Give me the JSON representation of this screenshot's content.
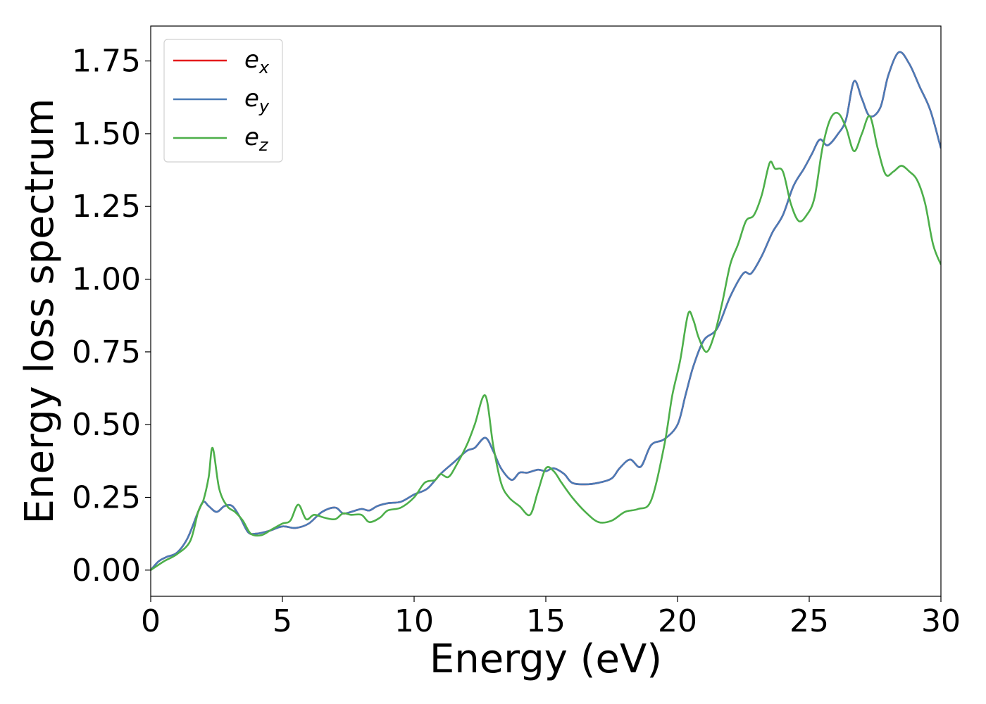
{
  "chart_data": {
    "type": "line",
    "title": "",
    "xlabel": "Energy (eV)",
    "ylabel": "Energy loss spectrum",
    "xlim": [
      0,
      30
    ],
    "ylim": [
      -0.09,
      1.87
    ],
    "xticks": [
      0,
      5,
      10,
      15,
      20,
      25,
      30
    ],
    "xtick_labels": [
      "0",
      "5",
      "10",
      "15",
      "20",
      "25",
      "30"
    ],
    "yticks": [
      0,
      0.25,
      0.5,
      0.75,
      1.0,
      1.25,
      1.5,
      1.75
    ],
    "ytick_labels": [
      "0.00",
      "0.25",
      "0.50",
      "0.75",
      "1.00",
      "1.25",
      "1.50",
      "1.75"
    ],
    "grid": false,
    "legend_position": "top-left",
    "series": [
      {
        "name": "e_x",
        "legend_base": "e",
        "legend_sub": "x",
        "color": "#e41a1c",
        "x": [
          0,
          0.3,
          0.6,
          1.0,
          1.4,
          1.8,
          2.0,
          2.2,
          2.5,
          2.8,
          3.1,
          3.4,
          3.7,
          4.0,
          4.5,
          5.0,
          5.5,
          6.0,
          6.5,
          7.0,
          7.3,
          7.6,
          8.0,
          8.3,
          8.6,
          9.0,
          9.5,
          10.0,
          10.5,
          11.0,
          11.5,
          12.0,
          12.3,
          12.7,
          13.0,
          13.3,
          13.7,
          14.0,
          14.3,
          14.7,
          15.0,
          15.3,
          15.7,
          16.0,
          16.5,
          17.0,
          17.5,
          17.8,
          18.2,
          18.6,
          19.0,
          19.5,
          20.0,
          20.3,
          20.6,
          21.0,
          21.5,
          22.0,
          22.5,
          22.8,
          23.2,
          23.6,
          24.0,
          24.4,
          24.8,
          25.1,
          25.4,
          25.7,
          26.1,
          26.4,
          26.7,
          27.0,
          27.3,
          27.7,
          28.0,
          28.4,
          28.8,
          29.2,
          29.6,
          30.0
        ],
        "values": [
          0,
          0.03,
          0.045,
          0.06,
          0.11,
          0.2,
          0.235,
          0.22,
          0.2,
          0.22,
          0.22,
          0.18,
          0.13,
          0.125,
          0.135,
          0.15,
          0.145,
          0.16,
          0.2,
          0.215,
          0.195,
          0.2,
          0.21,
          0.205,
          0.22,
          0.23,
          0.235,
          0.26,
          0.28,
          0.33,
          0.37,
          0.41,
          0.42,
          0.455,
          0.41,
          0.35,
          0.31,
          0.335,
          0.335,
          0.345,
          0.34,
          0.35,
          0.33,
          0.3,
          0.295,
          0.3,
          0.315,
          0.35,
          0.38,
          0.355,
          0.43,
          0.45,
          0.5,
          0.6,
          0.7,
          0.79,
          0.83,
          0.94,
          1.02,
          1.02,
          1.08,
          1.16,
          1.22,
          1.32,
          1.38,
          1.43,
          1.48,
          1.46,
          1.5,
          1.55,
          1.68,
          1.62,
          1.56,
          1.59,
          1.7,
          1.78,
          1.74,
          1.66,
          1.58,
          1.45
        ]
      },
      {
        "name": "e_y",
        "legend_base": "e",
        "legend_sub": "y",
        "color": "#4a7bb7",
        "x": [
          0,
          0.3,
          0.6,
          1.0,
          1.4,
          1.8,
          2.0,
          2.2,
          2.5,
          2.8,
          3.1,
          3.4,
          3.7,
          4.0,
          4.5,
          5.0,
          5.5,
          6.0,
          6.5,
          7.0,
          7.3,
          7.6,
          8.0,
          8.3,
          8.6,
          9.0,
          9.5,
          10.0,
          10.5,
          11.0,
          11.5,
          12.0,
          12.3,
          12.7,
          13.0,
          13.3,
          13.7,
          14.0,
          14.3,
          14.7,
          15.0,
          15.3,
          15.7,
          16.0,
          16.5,
          17.0,
          17.5,
          17.8,
          18.2,
          18.6,
          19.0,
          19.5,
          20.0,
          20.3,
          20.6,
          21.0,
          21.5,
          22.0,
          22.5,
          22.8,
          23.2,
          23.6,
          24.0,
          24.4,
          24.8,
          25.1,
          25.4,
          25.7,
          26.1,
          26.4,
          26.7,
          27.0,
          27.3,
          27.7,
          28.0,
          28.4,
          28.8,
          29.2,
          29.6,
          30.0
        ],
        "values": [
          0,
          0.03,
          0.045,
          0.06,
          0.11,
          0.2,
          0.235,
          0.22,
          0.2,
          0.22,
          0.22,
          0.18,
          0.13,
          0.125,
          0.135,
          0.15,
          0.145,
          0.16,
          0.2,
          0.215,
          0.195,
          0.2,
          0.21,
          0.205,
          0.22,
          0.23,
          0.235,
          0.26,
          0.28,
          0.33,
          0.37,
          0.41,
          0.42,
          0.455,
          0.41,
          0.35,
          0.31,
          0.335,
          0.335,
          0.345,
          0.34,
          0.35,
          0.33,
          0.3,
          0.295,
          0.3,
          0.315,
          0.35,
          0.38,
          0.355,
          0.43,
          0.45,
          0.5,
          0.6,
          0.7,
          0.79,
          0.83,
          0.94,
          1.02,
          1.02,
          1.08,
          1.16,
          1.22,
          1.32,
          1.38,
          1.43,
          1.48,
          1.46,
          1.5,
          1.55,
          1.68,
          1.62,
          1.56,
          1.59,
          1.7,
          1.78,
          1.74,
          1.66,
          1.58,
          1.45
        ]
      },
      {
        "name": "e_z",
        "legend_base": "e",
        "legend_sub": "z",
        "color": "#4daf4a",
        "x": [
          0,
          0.5,
          1.0,
          1.5,
          1.8,
          2.0,
          2.2,
          2.35,
          2.6,
          2.9,
          3.2,
          3.5,
          3.8,
          4.2,
          4.6,
          5.0,
          5.3,
          5.6,
          5.9,
          6.2,
          6.6,
          7.0,
          7.3,
          7.6,
          8.0,
          8.3,
          8.7,
          9.0,
          9.5,
          10.0,
          10.4,
          10.8,
          11.0,
          11.3,
          11.6,
          12.0,
          12.3,
          12.7,
          13.0,
          13.3,
          13.6,
          14.0,
          14.4,
          14.7,
          15.0,
          15.3,
          15.6,
          16.0,
          16.5,
          17.0,
          17.5,
          18.0,
          18.5,
          19.0,
          19.5,
          19.8,
          20.1,
          20.4,
          20.6,
          20.8,
          21.1,
          21.4,
          21.7,
          22.0,
          22.3,
          22.6,
          22.9,
          23.2,
          23.5,
          23.7,
          24.0,
          24.3,
          24.6,
          24.9,
          25.2,
          25.5,
          25.8,
          26.1,
          26.4,
          26.7,
          27.0,
          27.3,
          27.6,
          27.9,
          28.2,
          28.5,
          28.8,
          29.1,
          29.4,
          29.7,
          30.0
        ],
        "values": [
          0,
          0.03,
          0.055,
          0.1,
          0.2,
          0.24,
          0.32,
          0.42,
          0.28,
          0.22,
          0.2,
          0.17,
          0.125,
          0.12,
          0.14,
          0.16,
          0.17,
          0.225,
          0.175,
          0.19,
          0.18,
          0.175,
          0.195,
          0.19,
          0.19,
          0.165,
          0.18,
          0.205,
          0.215,
          0.25,
          0.3,
          0.31,
          0.33,
          0.32,
          0.36,
          0.43,
          0.5,
          0.6,
          0.43,
          0.3,
          0.25,
          0.22,
          0.19,
          0.27,
          0.35,
          0.34,
          0.3,
          0.25,
          0.2,
          0.165,
          0.17,
          0.2,
          0.21,
          0.24,
          0.43,
          0.6,
          0.72,
          0.88,
          0.86,
          0.8,
          0.75,
          0.81,
          0.92,
          1.05,
          1.12,
          1.2,
          1.22,
          1.29,
          1.4,
          1.38,
          1.37,
          1.26,
          1.2,
          1.22,
          1.28,
          1.45,
          1.55,
          1.57,
          1.52,
          1.44,
          1.5,
          1.56,
          1.45,
          1.36,
          1.37,
          1.39,
          1.37,
          1.34,
          1.26,
          1.12,
          1.05
        ]
      }
    ]
  }
}
